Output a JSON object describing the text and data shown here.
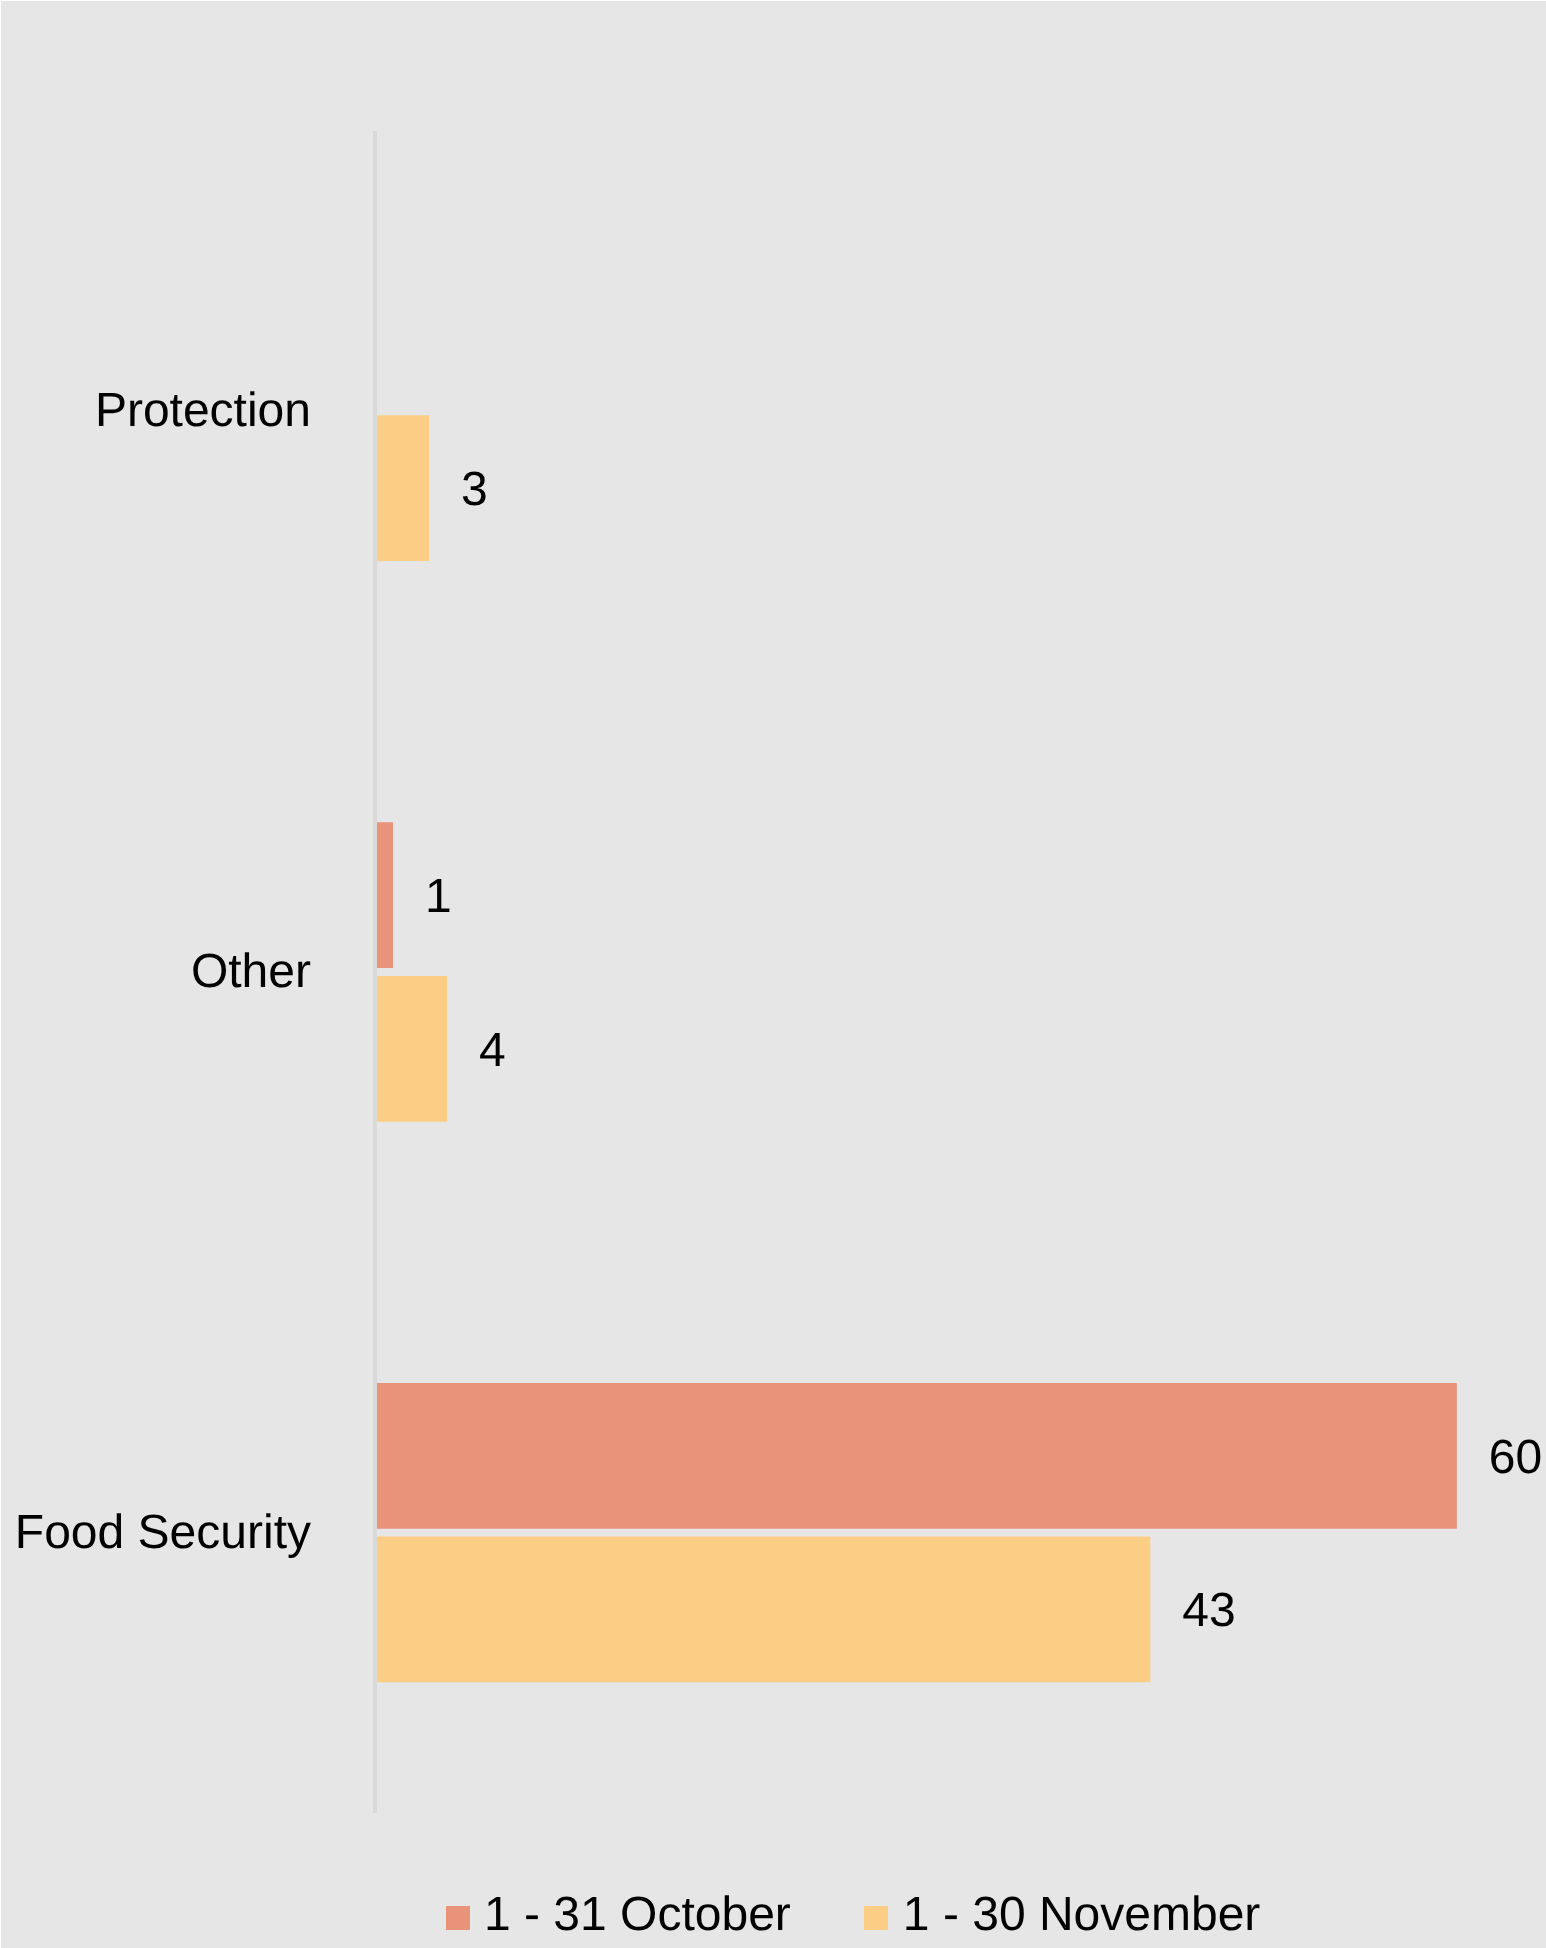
{
  "chart_data": {
    "type": "bar",
    "orientation": "horizontal",
    "categories": [
      "Protection",
      "Other",
      "Food Security"
    ],
    "series": [
      {
        "name": "1 - 31 October",
        "color": "#e8937a",
        "values": [
          null,
          1,
          60
        ]
      },
      {
        "name": "1 - 30 November",
        "color": "#fccd84",
        "values": [
          3,
          4,
          43
        ]
      }
    ],
    "xlim": [
      0,
      65
    ],
    "data_labels": true,
    "legend": "bottom",
    "tick_labels": "y"
  }
}
